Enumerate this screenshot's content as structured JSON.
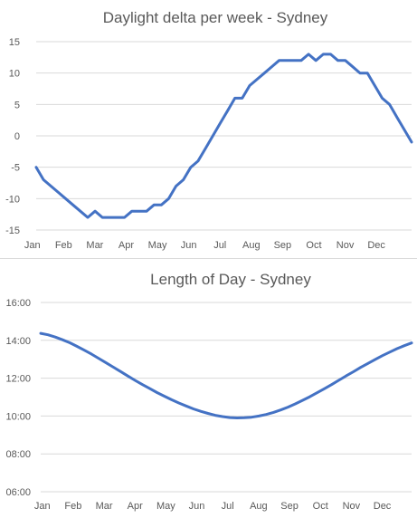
{
  "chart_data": [
    {
      "type": "line",
      "title": "Daylight delta per week - Sydney",
      "xlabel": "",
      "ylabel": "",
      "x_tick_labels": [
        "Jan",
        "Feb",
        "Mar",
        "Apr",
        "May",
        "Jun",
        "Jul",
        "Aug",
        "Sep",
        "Oct",
        "Nov",
        "Dec"
      ],
      "y_ticks": [
        15,
        10,
        5,
        0,
        -5,
        -10,
        -15
      ],
      "y_tick_labels": [
        "15",
        "10",
        "5",
        "0",
        "-5",
        "-10",
        "-15"
      ],
      "ylim": [
        -15,
        15
      ],
      "grid": true,
      "legend": "none",
      "color": "#4472c4",
      "series": [
        {
          "x": [
            1,
            2,
            3,
            4,
            5,
            6,
            7,
            8,
            9,
            10,
            11,
            12,
            13,
            14,
            15,
            16,
            17,
            18,
            19,
            20,
            21,
            22,
            23,
            24,
            25,
            26,
            27,
            28,
            29,
            30,
            31,
            32,
            33,
            34,
            35,
            36,
            37,
            38,
            39,
            40,
            41,
            42,
            43,
            44,
            45,
            46,
            47,
            48,
            49,
            50,
            51,
            52
          ],
          "values": [
            -5,
            -7,
            -8,
            -9,
            -10,
            -11,
            -12,
            -13,
            -12,
            -13,
            -13,
            -13,
            -13,
            -12,
            -12,
            -12,
            -11,
            -11,
            -10,
            -8,
            -7,
            -5,
            -4,
            -2,
            0,
            2,
            4,
            6,
            6,
            8,
            9,
            10,
            11,
            12,
            12,
            12,
            12,
            13,
            12,
            13,
            13,
            12,
            12,
            11,
            10,
            10,
            8,
            6,
            5,
            3,
            1,
            -1
          ]
        }
      ]
    },
    {
      "type": "line",
      "title": "Length of Day - Sydney",
      "xlabel": "",
      "ylabel": "",
      "x_tick_labels": [
        "Jan",
        "Feb",
        "Mar",
        "Apr",
        "May",
        "Jun",
        "Jul",
        "Aug",
        "Sep",
        "Oct",
        "Nov",
        "Dec"
      ],
      "y_ticks": [
        16,
        14,
        12,
        10,
        8,
        6
      ],
      "y_tick_labels": [
        "16:00",
        "14:00",
        "12:00",
        "10:00",
        "08:00",
        "06:00"
      ],
      "ylim": [
        6,
        16
      ],
      "grid": true,
      "legend": "none",
      "color": "#4472c4",
      "series": [
        {
          "x": [
            1,
            2,
            3,
            4,
            5,
            6,
            7,
            8,
            9,
            10,
            11,
            12,
            13,
            14,
            15,
            16,
            17,
            18,
            19,
            20,
            21,
            22,
            23,
            24,
            25,
            26,
            27,
            28,
            29,
            30,
            31,
            32,
            33,
            34,
            35,
            36,
            37,
            38,
            39,
            40,
            41,
            42,
            43,
            44,
            45,
            46,
            47,
            48,
            49,
            50,
            51,
            52
          ],
          "values": [
            14.37,
            14.29,
            14.17,
            14.03,
            13.87,
            13.68,
            13.48,
            13.27,
            13.04,
            12.81,
            12.58,
            12.35,
            12.11,
            11.88,
            11.66,
            11.45,
            11.24,
            11.05,
            10.86,
            10.69,
            10.53,
            10.38,
            10.25,
            10.14,
            10.04,
            9.97,
            9.92,
            9.9,
            9.91,
            9.94,
            10.0,
            10.08,
            10.19,
            10.32,
            10.47,
            10.64,
            10.83,
            11.02,
            11.23,
            11.44,
            11.66,
            11.89,
            12.12,
            12.34,
            12.57,
            12.78,
            12.99,
            13.19,
            13.38,
            13.56,
            13.72,
            13.86
          ]
        }
      ],
      "x_end_values": [
        14.37,
        14.42,
        14.4
      ]
    }
  ]
}
